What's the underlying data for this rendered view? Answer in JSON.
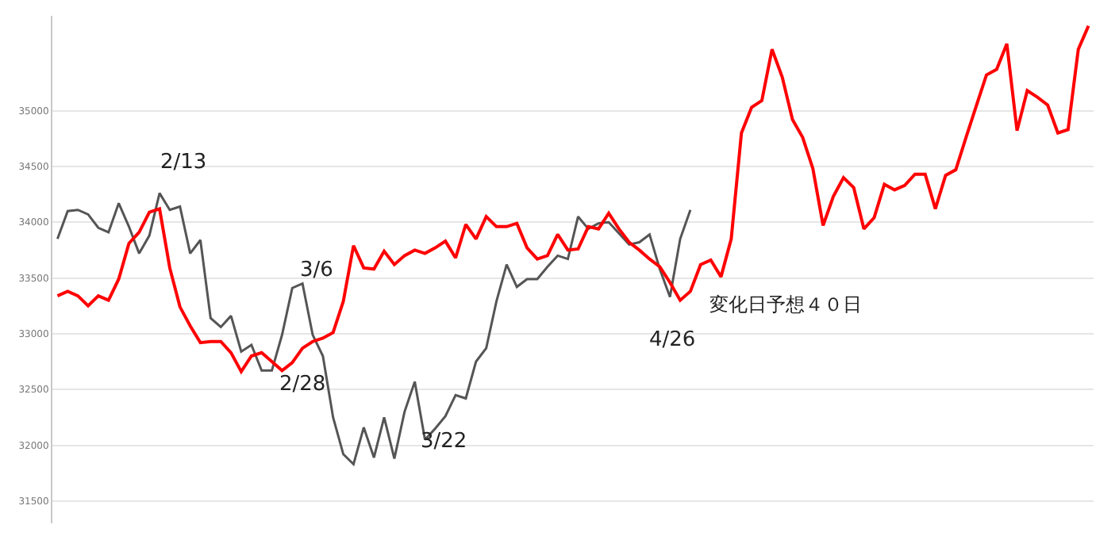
{
  "chart_data": {
    "type": "line",
    "categories": [
      null,
      null,
      null,
      null,
      null,
      null,
      null,
      null,
      null,
      null,
      null,
      null,
      null,
      null,
      null,
      null,
      null,
      null,
      null,
      null,
      null,
      null,
      null,
      null,
      null,
      null,
      null,
      null,
      null,
      null,
      null,
      null,
      null,
      null,
      null,
      null,
      null,
      null,
      null,
      null,
      null,
      null,
      null,
      null,
      null,
      null,
      null,
      null,
      null,
      null,
      null,
      null,
      null,
      null,
      null,
      null,
      null,
      null,
      null,
      null,
      null,
      null,
      null,
      null,
      null,
      null,
      null,
      null,
      null,
      null,
      null,
      null,
      null,
      null,
      null,
      null,
      null,
      null,
      null,
      null,
      null,
      null,
      null,
      null,
      null,
      null,
      null,
      null,
      null,
      null,
      null,
      null,
      null,
      null,
      null,
      null,
      null,
      null,
      null,
      null,
      null,
      null
    ],
    "series": [
      {
        "color": "#555555",
        "values": [
          33850,
          34100,
          34110,
          34070,
          33950,
          33910,
          34170,
          33960,
          33720,
          33880,
          34260,
          34110,
          34140,
          33720,
          33840,
          33140,
          33060,
          33160,
          32840,
          32900,
          32670,
          32670,
          32990,
          33410,
          33450,
          32990,
          32800,
          32250,
          31920,
          31830,
          32160,
          31890,
          32250,
          31880,
          32300,
          32570,
          32050,
          32150,
          32260,
          32450,
          32420,
          32750,
          32870,
          33290,
          33620,
          33420,
          33490,
          33490,
          33600,
          33700,
          33670,
          34050,
          33940,
          33990,
          34000,
          33900,
          33800,
          33820,
          33890,
          33580,
          33330,
          33850,
          34110,
          null,
          null,
          null,
          null,
          null,
          null,
          null,
          null,
          null,
          null,
          null,
          null,
          null,
          null,
          null,
          null,
          null,
          null,
          null,
          null,
          null,
          null,
          null,
          null,
          null,
          null,
          null,
          null,
          null,
          null,
          null,
          null,
          null,
          null,
          null,
          null,
          null,
          null,
          null
        ]
      },
      {
        "color": "#ff0000",
        "values": [
          33340,
          33380,
          33340,
          33250,
          33340,
          33300,
          33490,
          33810,
          33910,
          34090,
          34120,
          33590,
          33240,
          33070,
          32920,
          32930,
          32930,
          32830,
          32660,
          32800,
          32830,
          32750,
          32670,
          32740,
          32870,
          32930,
          32960,
          33010,
          33290,
          33790,
          33590,
          33580,
          33740,
          33620,
          33700,
          33750,
          33720,
          33770,
          33830,
          33680,
          33980,
          33850,
          34050,
          33960,
          33960,
          33990,
          33770,
          33670,
          33700,
          33890,
          33750,
          33760,
          33960,
          33940,
          34080,
          33940,
          33820,
          33750,
          33670,
          33600,
          33460,
          33300,
          33380,
          33620,
          33660,
          33510,
          33850,
          34800,
          35030,
          35090,
          35550,
          35300,
          34920,
          34760,
          34480,
          33970,
          34230,
          34400,
          34310,
          33940,
          34040,
          34340,
          34290,
          34330,
          34430,
          34430,
          34120,
          34420,
          34470,
          34760,
          35040,
          35320,
          35370,
          35600,
          34820,
          35180,
          35120,
          35050,
          34800,
          34830,
          35550,
          35760
        ]
      }
    ],
    "ylim": [
      31300,
      35850
    ],
    "yticks": [
      31500,
      32000,
      32500,
      33000,
      33500,
      34000,
      34500,
      35000
    ],
    "grid": "y",
    "marker": "none",
    "line_style": "solid",
    "tick_labels": "y",
    "annotations": [
      "2/13",
      "2/28",
      "3/6",
      "3/22",
      "4/26",
      "変化日予想４０日"
    ]
  }
}
